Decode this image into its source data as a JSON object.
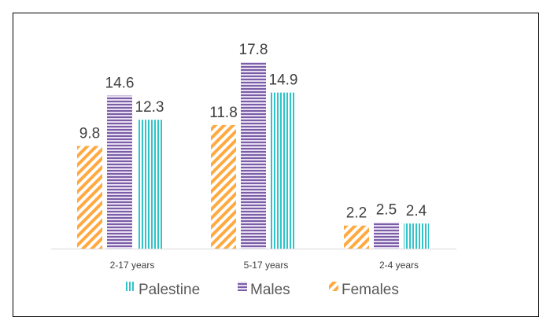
{
  "chart_data": {
    "type": "bar",
    "categories": [
      "2-17 years",
      "5-17 years",
      "2-4 years"
    ],
    "series": [
      {
        "name": "Females",
        "values": [
          9.8,
          11.8,
          2.2
        ],
        "color": "#FFA940",
        "pattern": "diagonal-stripes"
      },
      {
        "name": "Males",
        "values": [
          14.6,
          17.8,
          2.5
        ],
        "color": "#7B5EA7",
        "pattern": "horizontal-stripes"
      },
      {
        "name": "Palestine",
        "values": [
          12.3,
          14.9,
          2.4
        ],
        "color": "#2EC4C8",
        "pattern": "vertical-stripes"
      }
    ],
    "legend_order": [
      "Palestine",
      "Males",
      "Females"
    ],
    "legend_position": "bottom",
    "title": "",
    "xlabel": "",
    "ylabel": "",
    "ylim": [
      0,
      18
    ],
    "grid": false,
    "data_labels": true
  }
}
